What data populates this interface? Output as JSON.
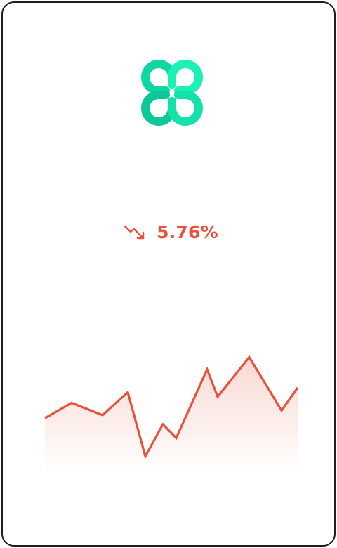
{
  "app": {
    "brand_color": "#1de3b0",
    "brand_icon": "clover-logo-icon"
  },
  "price_change": {
    "direction": "down",
    "icon": "trend-down-arrow-icon",
    "value": "5.76%",
    "color": "#e8523b"
  },
  "chart_data": {
    "type": "area",
    "line_color": "#e8523b",
    "values": [
      58,
      68,
      60,
      75,
      33,
      54,
      45,
      90,
      72,
      98,
      63,
      78
    ]
  }
}
